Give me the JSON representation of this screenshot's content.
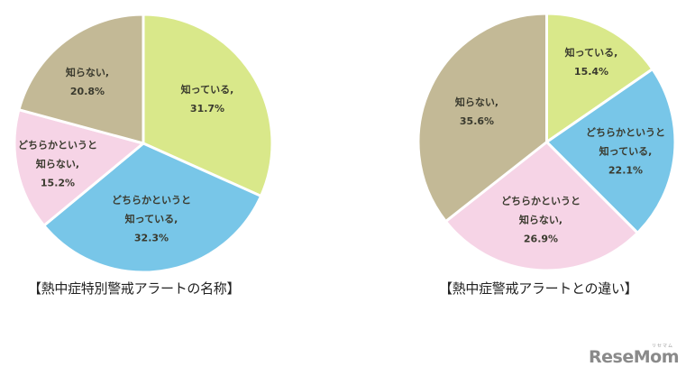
{
  "chart_data": [
    {
      "type": "pie",
      "title": "【熱中症特別警戒アラートの名称】",
      "start_angle_deg": 0,
      "direction": "clockwise",
      "slices": [
        {
          "label": "知っている",
          "value": 31.7,
          "display": "31.7%",
          "color": "#d9e88a"
        },
        {
          "label": "どちらかというと知っている",
          "value": 32.3,
          "display": "32.3%",
          "color": "#78c6e8"
        },
        {
          "label": "どちらかというと知らない",
          "value": 15.2,
          "display": "15.2%",
          "color": "#f6d4e6"
        },
        {
          "label": "知らない",
          "value": 20.8,
          "display": "20.8%",
          "color": "#c3b996"
        }
      ]
    },
    {
      "type": "pie",
      "title": "【熱中症警戒アラートとの違い】",
      "start_angle_deg": 0,
      "direction": "clockwise",
      "slices": [
        {
          "label": "知っている",
          "value": 15.4,
          "display": "15.4%",
          "color": "#d9e88a"
        },
        {
          "label": "どちらかというと知っている",
          "value": 22.1,
          "display": "22.1%",
          "color": "#78c6e8"
        },
        {
          "label": "どちらかというと知らない",
          "value": 26.9,
          "display": "26.9%",
          "color": "#f6d4e6"
        },
        {
          "label": "知らない",
          "value": 35.6,
          "display": "35.6%",
          "color": "#c3b996"
        }
      ]
    }
  ],
  "charts": {
    "left": {
      "caption": "【熱中症特別警戒アラートの名称】",
      "labels": [
        {
          "lines": [
            "知っている,",
            "31.7%"
          ]
        },
        {
          "lines": [
            "どちらかというと",
            "知っている,",
            "32.3%"
          ]
        },
        {
          "lines": [
            "どちらかというと",
            "知らない,",
            "15.2%"
          ]
        },
        {
          "lines": [
            "知らない,",
            "20.8%"
          ]
        }
      ]
    },
    "right": {
      "caption": "【熱中症警戒アラートとの違い】",
      "labels": [
        {
          "lines": [
            "知っている,",
            "15.4%"
          ]
        },
        {
          "lines": [
            "どちらかというと",
            "知っている,",
            "22.1%"
          ]
        },
        {
          "lines": [
            "どちらかというと",
            "知らない,",
            "26.9%"
          ]
        },
        {
          "lines": [
            "知らない,",
            "35.6%"
          ]
        }
      ]
    }
  },
  "logo": {
    "text": "ReseMom",
    "sub": "リセマム"
  }
}
